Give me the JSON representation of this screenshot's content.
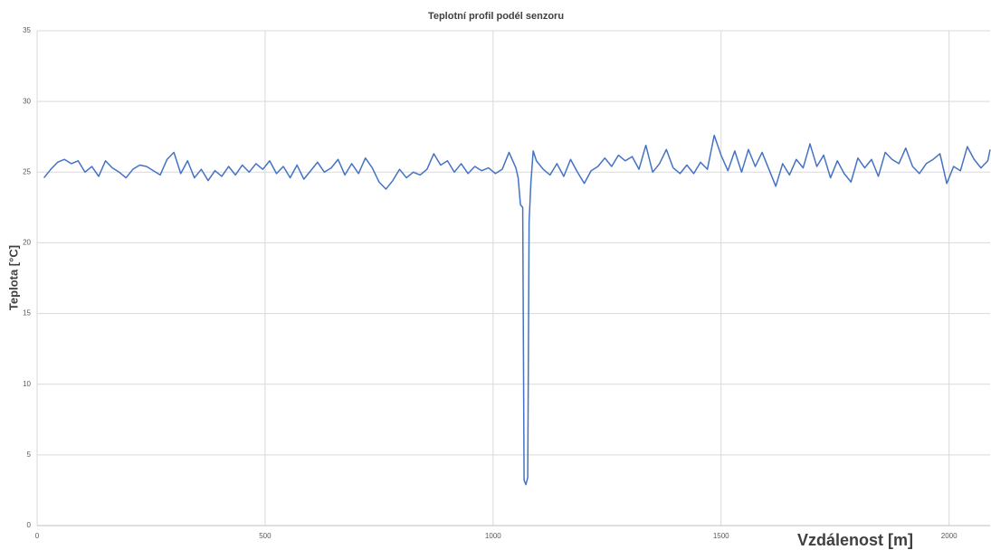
{
  "chart_data": {
    "type": "line",
    "title": "Teplotní profil podél senzoru",
    "x_label": "Vzdálenost [m]",
    "y_label": "Teplota [°C]",
    "color": "#4472c4",
    "grid": true,
    "xlim": [
      0,
      2090
    ],
    "xticks": [
      0,
      500,
      1000,
      1500,
      2000
    ],
    "ylim": [
      0,
      35
    ],
    "yticks": [
      0,
      5,
      10,
      15,
      20,
      25,
      30,
      35
    ],
    "x": [
      15,
      30,
      45,
      60,
      75,
      90,
      105,
      120,
      135,
      150,
      165,
      180,
      195,
      210,
      225,
      240,
      255,
      270,
      285,
      300,
      315,
      330,
      345,
      360,
      375,
      390,
      405,
      420,
      435,
      450,
      465,
      480,
      495,
      510,
      525,
      540,
      555,
      570,
      585,
      600,
      615,
      630,
      645,
      660,
      675,
      690,
      705,
      720,
      735,
      750,
      765,
      780,
      795,
      810,
      825,
      840,
      855,
      870,
      885,
      900,
      915,
      930,
      945,
      960,
      975,
      990,
      1005,
      1020,
      1035,
      1050,
      1055,
      1060,
      1065,
      1068,
      1072,
      1076,
      1079,
      1083,
      1088,
      1095,
      1110,
      1125,
      1140,
      1155,
      1170,
      1185,
      1200,
      1215,
      1230,
      1245,
      1260,
      1275,
      1290,
      1305,
      1320,
      1335,
      1350,
      1365,
      1380,
      1395,
      1410,
      1425,
      1440,
      1455,
      1470,
      1485,
      1500,
      1515,
      1530,
      1545,
      1560,
      1575,
      1590,
      1605,
      1620,
      1635,
      1650,
      1665,
      1680,
      1695,
      1710,
      1725,
      1740,
      1755,
      1770,
      1785,
      1800,
      1815,
      1830,
      1845,
      1860,
      1875,
      1890,
      1905,
      1920,
      1935,
      1950,
      1965,
      1980,
      1995,
      2010,
      2025,
      2040,
      2055,
      2070,
      2085,
      2090
    ],
    "values": [
      24.6,
      25.2,
      25.7,
      25.9,
      25.6,
      25.8,
      25.0,
      25.4,
      24.7,
      25.8,
      25.3,
      25.0,
      24.6,
      25.2,
      25.5,
      25.4,
      25.1,
      24.8,
      25.9,
      26.4,
      24.9,
      25.8,
      24.6,
      25.2,
      24.4,
      25.1,
      24.7,
      25.4,
      24.8,
      25.5,
      25.0,
      25.6,
      25.2,
      25.8,
      24.9,
      25.4,
      24.6,
      25.5,
      24.5,
      25.1,
      25.7,
      25.0,
      25.3,
      25.9,
      24.8,
      25.6,
      24.9,
      26.0,
      25.3,
      24.3,
      23.8,
      24.4,
      25.2,
      24.6,
      25.0,
      24.8,
      25.2,
      26.3,
      25.5,
      25.8,
      25.0,
      25.6,
      24.9,
      25.4,
      25.1,
      25.3,
      24.9,
      25.2,
      26.4,
      25.3,
      24.6,
      22.7,
      22.5,
      3.2,
      2.9,
      3.4,
      21.5,
      24.3,
      26.5,
      25.8,
      25.2,
      24.8,
      25.6,
      24.7,
      25.9,
      25.0,
      24.2,
      25.1,
      25.4,
      26.0,
      25.4,
      26.2,
      25.8,
      26.1,
      25.2,
      26.9,
      25.0,
      25.6,
      26.6,
      25.3,
      24.9,
      25.5,
      24.9,
      25.7,
      25.2,
      27.6,
      26.2,
      25.1,
      26.5,
      25.0,
      26.6,
      25.4,
      26.4,
      25.2,
      24.0,
      25.6,
      24.8,
      25.9,
      25.3,
      27.0,
      25.4,
      26.2,
      24.6,
      25.8,
      24.9,
      24.3,
      26.0,
      25.3,
      25.9,
      24.7,
      26.4,
      25.9,
      25.6,
      26.7,
      25.4,
      24.9,
      25.6,
      25.9,
      26.3,
      24.2,
      25.4,
      25.1,
      26.8,
      25.9,
      25.3,
      25.8,
      26.6
    ]
  }
}
